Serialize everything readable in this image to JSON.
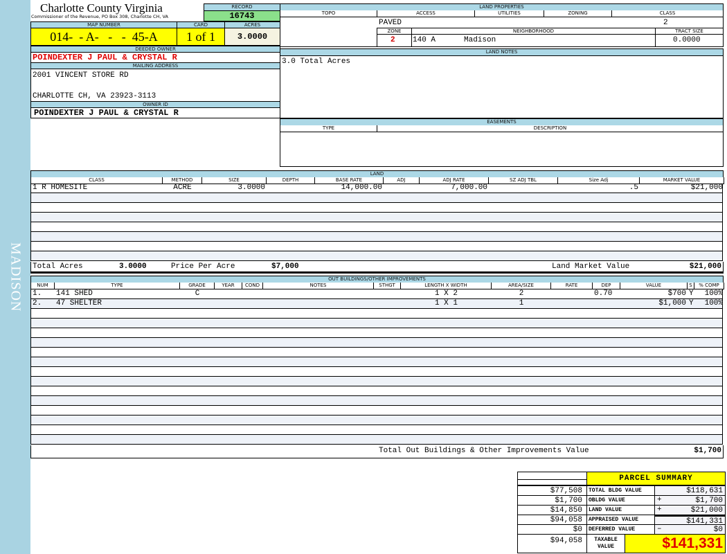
{
  "sidebar": {
    "label": "MADISON",
    "color": "#a9d3e2"
  },
  "header": {
    "title": "Charlotte County Virginia",
    "subtitle": "Commissioner of the Revenue, PO Box 308, Charlotte CH, VA",
    "record_label": "RECORD",
    "record": "16743",
    "map_number_label": "MAP NUMBER",
    "map_number": "014-  - A-   -   -  45-A",
    "card_label": "CARD",
    "card": "1 of 1",
    "acres_label": "ACRES",
    "acres": "3.0000"
  },
  "owner": {
    "deeded_label": "DEEDED OWNER",
    "deeded": "POINDEXTER J PAUL & CRYSTAL R",
    "mailing_label": "MAILING ADDRESS",
    "address1": "2001 VINCENT STORE RD",
    "address2": "CHARLOTTE CH, VA 23923-3113",
    "owner_id_label": "OWNER ID",
    "owner_id": "POINDEXTER J PAUL & CRYSTAL R"
  },
  "land_properties": {
    "title": "LAND PROPERTIES",
    "topo_label": "TOPO",
    "access_label": "ACCESS",
    "utilities_label": "UTILITIES",
    "zoning_label": "ZONING",
    "class_label": "CLASS",
    "access": "PAVED",
    "class": "2",
    "zone_label": "ZONE",
    "neighborhood_label": "NEIGHBORHOOD",
    "tract_label": "TRACT SIZE",
    "zone": "2",
    "neighborhood_code": "140 A",
    "neighborhood": "Madison",
    "tract_size": "0.0000"
  },
  "land_notes": {
    "title": "LAND NOTES",
    "text": "3.0 Total Acres"
  },
  "easements": {
    "title": "EASEMENTS",
    "type_label": "TYPE",
    "description_label": "DESCRIPTION"
  },
  "land": {
    "title": "LAND",
    "columns": [
      "CLASS",
      "METHOD",
      "SIZE",
      "DEPTH",
      "BASE RATE",
      "ADJ",
      "ADJ RATE",
      "SZ ADJ TBL",
      "Size Adj",
      "MARKET VALUE"
    ],
    "rows": [
      [
        "1 R HOMESITE",
        "ACRE",
        "3.0000",
        "",
        "14,000.00",
        "",
        "7,000.00",
        "",
        ".5",
        "$21,000"
      ]
    ],
    "total_acres_label": "Total Acres",
    "total_acres": "3.0000",
    "price_per_acre_label": "Price Per Acre",
    "price_per_acre": "$7,000",
    "market_value_label": "Land Market Value",
    "market_value": "$21,000"
  },
  "outbuildings": {
    "title": "OUT BUILDINGS/OTHER IMPROVEMENTS",
    "columns": [
      "NUM",
      "TYPE",
      "GRADE",
      "YEAR",
      "COND",
      "NOTES",
      "STHGT",
      "LENGTH X WIDTH",
      "AREA/SIZE",
      "RATE",
      "DEP",
      "VALUE",
      "S",
      "% COMP"
    ],
    "rows": [
      [
        "1.",
        "141  SHED",
        "C",
        "",
        "",
        "",
        "",
        "1 X 2",
        "2",
        "",
        "0.70",
        "$700",
        "Y",
        "100%"
      ],
      [
        "2.",
        "47  SHELTER",
        "",
        "",
        "",
        "",
        "",
        "1 X 1",
        "1",
        "",
        "",
        "$1,000",
        "Y",
        "100%"
      ]
    ],
    "total_label": "Total Out Buildings & Other Improvements Value",
    "total": "$1,700"
  },
  "summary": {
    "title": "PARCEL SUMMARY",
    "rows": [
      {
        "prior": "$77,508",
        "label": "TOTAL BLDG VALUE",
        "sign": "",
        "value": "$118,631"
      },
      {
        "prior": "$1,700",
        "label": "OBLDG VALUE",
        "sign": "+",
        "value": "$1,700"
      },
      {
        "prior": "$14,850",
        "label": "LAND VALUE",
        "sign": "+",
        "value": "$21,000"
      },
      {
        "prior": "$94,058",
        "label": "APPRAISED VALUE",
        "sign": "",
        "value": "$141,331"
      },
      {
        "prior": "$0",
        "label": "DEFERRED VALUE",
        "sign": "–",
        "value": "$0"
      }
    ],
    "taxable_prior": "$94,058",
    "taxable_label": "TAXABLE VALUE",
    "taxable": "$141,331"
  }
}
